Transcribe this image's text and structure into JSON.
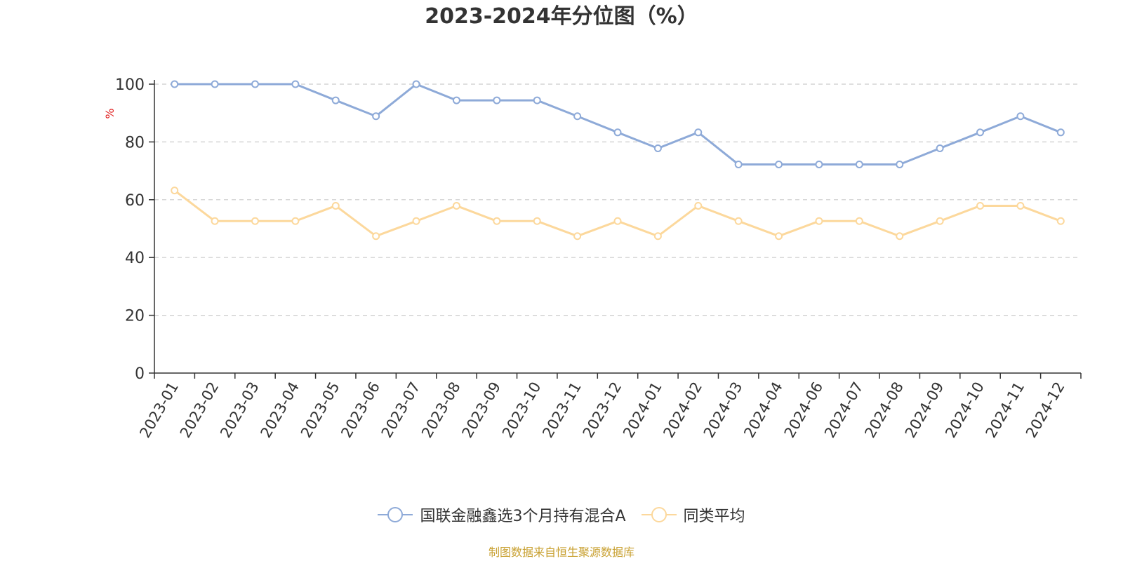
{
  "colors": {
    "series1": "#8eaad8",
    "series2": "#fcd89c",
    "ylabel": "#e02020",
    "source": "#c8a030",
    "grid": "#cccccc",
    "axis": "#333333"
  },
  "chart_data": {
    "type": "line",
    "title": "2023-2024年分位图（%）",
    "ylabel": "%",
    "xlabel": "",
    "ylim": [
      0,
      100
    ],
    "yticks": [
      0,
      20,
      40,
      60,
      80,
      100
    ],
    "grid": true,
    "legend_position": "bottom",
    "categories": [
      "2023-01",
      "2023-02",
      "2023-03",
      "2023-04",
      "2023-05",
      "2023-06",
      "2023-07",
      "2023-08",
      "2023-09",
      "2023-10",
      "2023-11",
      "2023-12",
      "2024-01",
      "2024-02",
      "2024-03",
      "2024-04",
      "2024-06",
      "2024-07",
      "2024-08",
      "2024-09",
      "2024-10",
      "2024-11",
      "2024-12"
    ],
    "series": [
      {
        "name": "国联金融鑫选3个月持有混合A",
        "color": "#8eaad8",
        "values": [
          100,
          100,
          100,
          100,
          94.4,
          88.9,
          100,
          94.4,
          94.4,
          94.4,
          88.9,
          83.3,
          77.8,
          83.3,
          72.2,
          72.2,
          72.2,
          72.2,
          72.2,
          77.8,
          83.3,
          88.9,
          83.3
        ]
      },
      {
        "name": "同类平均",
        "color": "#fcd89c",
        "values": [
          63.2,
          52.6,
          52.6,
          52.6,
          57.9,
          47.4,
          52.6,
          57.9,
          52.6,
          52.6,
          47.4,
          52.6,
          47.4,
          57.9,
          52.6,
          47.4,
          52.6,
          52.6,
          47.4,
          52.6,
          57.9,
          57.9,
          52.6
        ]
      }
    ]
  },
  "source_note": "制图数据来自恒生聚源数据库"
}
